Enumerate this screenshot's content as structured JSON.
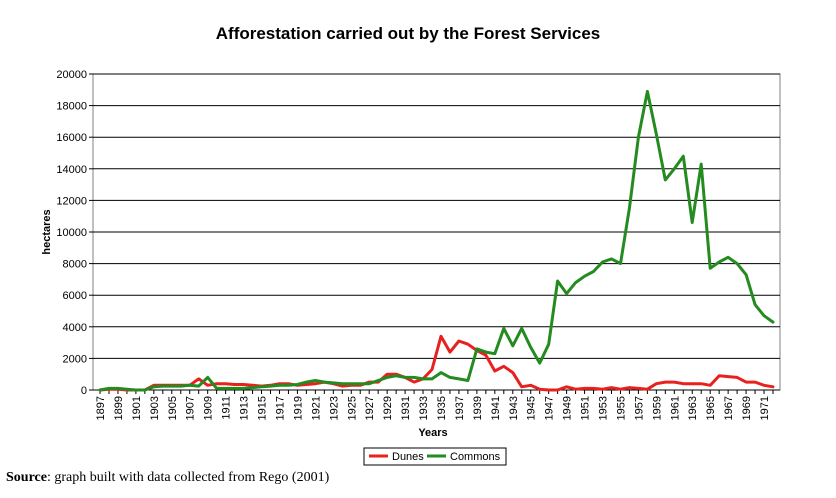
{
  "chart_data": {
    "type": "line",
    "title": "Afforestation carried out by the Forest Services",
    "xlabel": "Years",
    "ylabel": "hectares",
    "ylim": [
      0,
      20000
    ],
    "yticks": [
      0,
      2000,
      4000,
      6000,
      8000,
      10000,
      12000,
      14000,
      16000,
      18000,
      20000
    ],
    "xticks": [
      "1897",
      "1899",
      "1901",
      "1903",
      "1905",
      "1907",
      "1909",
      "1911",
      "1913",
      "1915",
      "1917",
      "1919",
      "1921",
      "1923",
      "1925",
      "1927",
      "1929",
      "1931",
      "1933",
      "1935",
      "1937",
      "1939",
      "1941",
      "1943",
      "1945",
      "1947",
      "1949",
      "1951",
      "1953",
      "1955",
      "1957",
      "1959",
      "1961",
      "1963",
      "1965",
      "1967",
      "1969",
      "1971"
    ],
    "x": [
      1897,
      1898,
      1899,
      1900,
      1901,
      1902,
      1903,
      1904,
      1905,
      1906,
      1907,
      1908,
      1909,
      1910,
      1911,
      1912,
      1913,
      1914,
      1915,
      1916,
      1917,
      1918,
      1919,
      1920,
      1921,
      1922,
      1923,
      1924,
      1925,
      1926,
      1927,
      1928,
      1929,
      1930,
      1931,
      1932,
      1933,
      1934,
      1935,
      1936,
      1937,
      1938,
      1939,
      1940,
      1941,
      1942,
      1943,
      1944,
      1945,
      1946,
      1947,
      1948,
      1949,
      1950,
      1951,
      1952,
      1953,
      1954,
      1955,
      1956,
      1957,
      1958,
      1959,
      1960,
      1961,
      1962,
      1963,
      1964,
      1965,
      1966,
      1967,
      1968,
      1969,
      1970,
      1971,
      1972
    ],
    "grid": true,
    "legend": "bottom-center",
    "series": [
      {
        "name": "Dunes",
        "color": "#e8211f",
        "values": [
          0,
          50,
          50,
          0,
          0,
          0,
          300,
          300,
          300,
          300,
          300,
          700,
          300,
          400,
          400,
          350,
          350,
          300,
          250,
          300,
          400,
          400,
          300,
          350,
          400,
          500,
          400,
          250,
          300,
          300,
          500,
          500,
          1000,
          1000,
          800,
          500,
          700,
          1300,
          3400,
          2400,
          3100,
          2900,
          2500,
          2200,
          1200,
          1500,
          1100,
          200,
          300,
          50,
          0,
          0,
          200,
          50,
          100,
          100,
          50,
          150,
          50,
          150,
          100,
          50,
          400,
          500,
          500,
          400,
          400,
          400,
          300,
          900,
          850,
          800,
          500,
          500,
          300,
          200
        ]
      },
      {
        "name": "Commons",
        "color": "#238b1f",
        "values": [
          0,
          100,
          100,
          50,
          0,
          0,
          200,
          250,
          250,
          250,
          300,
          250,
          800,
          100,
          100,
          100,
          100,
          150,
          200,
          250,
          300,
          300,
          350,
          500,
          600,
          500,
          450,
          400,
          400,
          400,
          400,
          600,
          800,
          900,
          800,
          800,
          700,
          700,
          1100,
          800,
          700,
          600,
          2600,
          2400,
          2300,
          3900,
          2800,
          3900,
          2700,
          1700,
          2900,
          6900,
          6100,
          6800,
          7200,
          7500,
          8100,
          8300,
          8000,
          11500,
          16000,
          18900,
          16200,
          13300,
          14000,
          14800,
          10600,
          14300,
          7700,
          8100,
          8400,
          8000,
          7300,
          5400,
          4700,
          4300
        ]
      }
    ]
  },
  "source": {
    "label": "Source",
    "text": ": graph built with data collected from Rego (2001)"
  }
}
